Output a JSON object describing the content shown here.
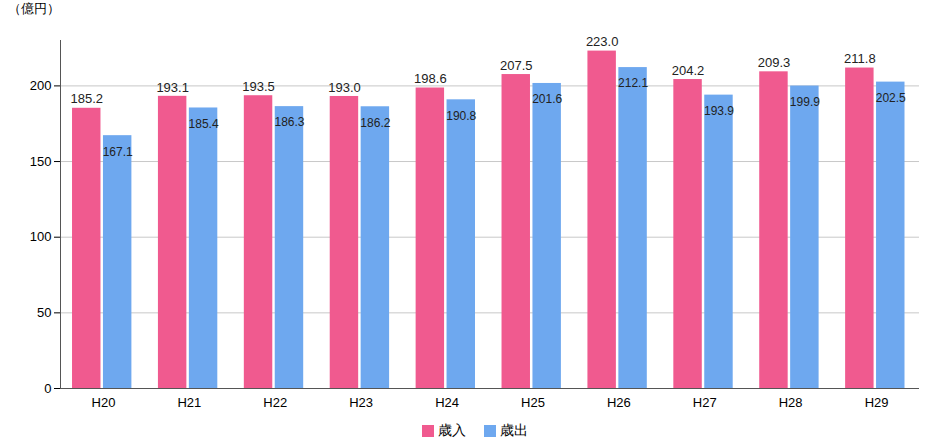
{
  "chart_data": {
    "type": "bar",
    "y_label": "（億円）",
    "categories": [
      "H20",
      "H21",
      "H22",
      "H23",
      "H24",
      "H25",
      "H26",
      "H27",
      "H28",
      "H29"
    ],
    "series": [
      {
        "name": "歳入",
        "color": "#f05a8f",
        "values": [
          185.2,
          193.1,
          193.5,
          193.0,
          198.6,
          207.5,
          223.0,
          204.2,
          209.3,
          211.8
        ],
        "value_labels": [
          "185.2",
          "193.1",
          "193.5",
          "193.0",
          "198.6",
          "207.5",
          "223.0",
          "204.2",
          "209.3",
          "211.8"
        ]
      },
      {
        "name": "歳出",
        "color": "#6ea8ef",
        "values": [
          167.1,
          185.4,
          186.3,
          186.2,
          190.8,
          201.6,
          212.1,
          193.9,
          199.9,
          202.5
        ],
        "value_labels": [
          "167.1",
          "185.4",
          "186.3",
          "186.2",
          "190.8",
          "201.6",
          "212.1",
          "193.9",
          "199.9",
          "202.5"
        ]
      }
    ],
    "ylim": [
      0,
      230
    ],
    "yticks": [
      0,
      50,
      100,
      150,
      200
    ],
    "grid": true,
    "data_labels": true,
    "legend": "bottom"
  }
}
